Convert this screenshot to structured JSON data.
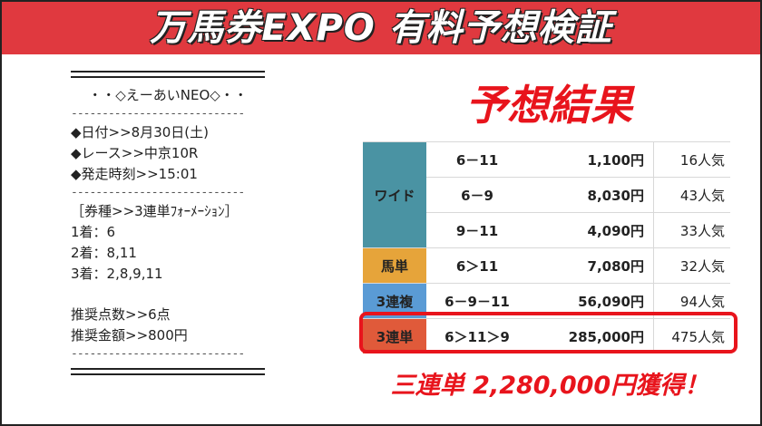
{
  "header": {
    "title": "万馬券EXPO 有料予想検証"
  },
  "prediction": {
    "name": "・・◇えーあいNEO◇・・",
    "dash": "----------------------------",
    "date": "◆日付>>8月30日(土)",
    "race": "◆レース>>中京10R",
    "start": "◆発走時刻>>15:01",
    "bet_type": "［券種>>3連単ﾌｫｰﾒｰｼｮﾝ］",
    "first": "1着：6",
    "second": "2着：8,11",
    "third": "3着：2,8,9,11",
    "points": "推奨点数>>6点",
    "amount": "推奨金額>>800円"
  },
  "results": {
    "title": "予想結果",
    "rows": [
      {
        "type": "ワイド",
        "combo": "6－11",
        "payout": "1,100円",
        "popularity": "16人気"
      },
      {
        "type": "",
        "combo": "6－9",
        "payout": "8,030円",
        "popularity": "43人気"
      },
      {
        "type": "",
        "combo": "9－11",
        "payout": "4,090円",
        "popularity": "33人気"
      },
      {
        "type": "馬単",
        "combo": "6＞11",
        "payout": "7,080円",
        "popularity": "32人気"
      },
      {
        "type": "3連複",
        "combo": "6－9－11",
        "payout": "56,090円",
        "popularity": "94人気"
      },
      {
        "type": "3連単",
        "combo": "6＞11＞9",
        "payout": "285,000円",
        "popularity": "475人気"
      }
    ],
    "colors": {
      "wide": "#4a93a3",
      "umatan": "#e6a43a",
      "sanrenpuku": "#5a9bd5",
      "sanrentan": "#e05a3a",
      "highlight": "#e8141c"
    }
  },
  "winnings": "三連単 2,280,000円獲得！"
}
